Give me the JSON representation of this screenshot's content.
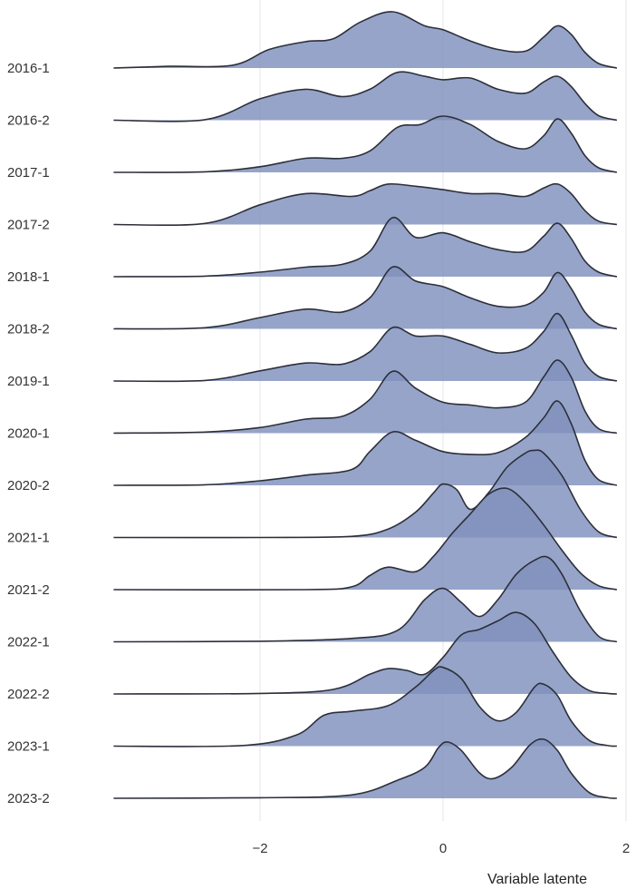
{
  "chart_data": {
    "type": "ridgeline",
    "title": "",
    "xlabel": "Variable latente",
    "ylabel": "",
    "xlim": [
      -3.6,
      1.95
    ],
    "xticks": [
      -2,
      0,
      2
    ],
    "grid": true,
    "fill_color": "#8090bd",
    "overlap_color": "#5a6aa6",
    "line_color": "#2c2f3a",
    "categories": [
      "2016-1",
      "2016-2",
      "2017-1",
      "2017-2",
      "2018-1",
      "2018-2",
      "2019-1",
      "2020-1",
      "2020-2",
      "2021-1",
      "2021-2",
      "2022-1",
      "2022-2",
      "2023-1",
      "2023-2"
    ],
    "series": [
      {
        "name": "2016-1",
        "x": [
          -3.6,
          -3.0,
          -2.3,
          -1.9,
          -1.5,
          -1.2,
          -0.9,
          -0.55,
          -0.2,
          0.0,
          0.3,
          0.6,
          0.9,
          1.1,
          1.25,
          1.4,
          1.55,
          1.7,
          1.9
        ],
        "y": [
          0.0,
          0.03,
          0.05,
          0.33,
          0.47,
          0.52,
          0.82,
          1.0,
          0.75,
          0.68,
          0.48,
          0.33,
          0.3,
          0.55,
          0.75,
          0.6,
          0.28,
          0.08,
          0.0
        ]
      },
      {
        "name": "2016-2",
        "x": [
          -3.6,
          -2.6,
          -2.0,
          -1.5,
          -1.1,
          -0.8,
          -0.5,
          -0.2,
          0.0,
          0.3,
          0.6,
          0.9,
          1.1,
          1.25,
          1.4,
          1.55,
          1.7,
          1.9
        ],
        "y": [
          0.0,
          0.01,
          0.38,
          0.55,
          0.42,
          0.55,
          0.85,
          0.78,
          0.72,
          0.75,
          0.55,
          0.48,
          0.68,
          0.78,
          0.6,
          0.3,
          0.08,
          0.0
        ]
      },
      {
        "name": "2017-1",
        "x": [
          -3.6,
          -2.6,
          -2.0,
          -1.5,
          -1.1,
          -0.8,
          -0.5,
          -0.25,
          0.0,
          0.3,
          0.6,
          0.9,
          1.1,
          1.25,
          1.4,
          1.55,
          1.7,
          1.9
        ],
        "y": [
          0.0,
          0.01,
          0.1,
          0.25,
          0.25,
          0.38,
          0.8,
          0.85,
          1.0,
          0.85,
          0.55,
          0.42,
          0.65,
          0.95,
          0.7,
          0.3,
          0.08,
          0.0
        ]
      },
      {
        "name": "2017-2",
        "x": [
          -3.6,
          -2.6,
          -2.0,
          -1.5,
          -1.0,
          -0.8,
          -0.6,
          -0.3,
          0.0,
          0.3,
          0.6,
          0.9,
          1.1,
          1.25,
          1.4,
          1.55,
          1.7,
          1.9
        ],
        "y": [
          0.0,
          0.02,
          0.35,
          0.55,
          0.5,
          0.6,
          0.72,
          0.68,
          0.62,
          0.55,
          0.55,
          0.5,
          0.65,
          0.72,
          0.55,
          0.25,
          0.06,
          0.0
        ]
      },
      {
        "name": "2018-1",
        "x": [
          -3.6,
          -2.6,
          -2.0,
          -1.5,
          -1.1,
          -0.8,
          -0.55,
          -0.3,
          0.0,
          0.3,
          0.6,
          0.9,
          1.1,
          1.25,
          1.4,
          1.55,
          1.7,
          1.9
        ],
        "y": [
          0.0,
          0.01,
          0.08,
          0.17,
          0.22,
          0.45,
          1.05,
          0.7,
          0.78,
          0.62,
          0.48,
          0.45,
          0.72,
          0.95,
          0.68,
          0.28,
          0.08,
          0.0
        ]
      },
      {
        "name": "2018-2",
        "x": [
          -3.6,
          -2.6,
          -2.0,
          -1.5,
          -1.1,
          -0.8,
          -0.55,
          -0.3,
          0.0,
          0.3,
          0.6,
          0.9,
          1.1,
          1.25,
          1.4,
          1.55,
          1.7,
          1.9
        ],
        "y": [
          0.0,
          0.02,
          0.2,
          0.35,
          0.3,
          0.55,
          1.1,
          0.85,
          0.75,
          0.55,
          0.4,
          0.42,
          0.65,
          1.0,
          0.72,
          0.3,
          0.08,
          0.0
        ]
      },
      {
        "name": "2019-1",
        "x": [
          -3.6,
          -2.6,
          -2.0,
          -1.5,
          -1.1,
          -0.8,
          -0.55,
          -0.3,
          0.0,
          0.3,
          0.6,
          0.9,
          1.1,
          1.25,
          1.4,
          1.55,
          1.7,
          1.9
        ],
        "y": [
          0.0,
          0.01,
          0.18,
          0.32,
          0.3,
          0.52,
          0.95,
          0.8,
          0.8,
          0.65,
          0.5,
          0.58,
          0.88,
          1.2,
          0.82,
          0.32,
          0.08,
          0.0
        ]
      },
      {
        "name": "2020-1",
        "x": [
          -3.6,
          -2.6,
          -2.0,
          -1.5,
          -1.1,
          -0.8,
          -0.55,
          -0.3,
          0.0,
          0.3,
          0.6,
          0.9,
          1.1,
          1.25,
          1.4,
          1.55,
          1.7,
          1.9
        ],
        "y": [
          0.0,
          0.02,
          0.1,
          0.25,
          0.3,
          0.6,
          1.1,
          0.8,
          0.55,
          0.5,
          0.45,
          0.55,
          1.0,
          1.3,
          1.0,
          0.4,
          0.08,
          0.0
        ]
      },
      {
        "name": "2020-2",
        "x": [
          -3.6,
          -2.6,
          -2.0,
          -1.5,
          -1.0,
          -0.8,
          -0.55,
          -0.3,
          0.0,
          0.3,
          0.6,
          0.9,
          1.1,
          1.25,
          1.4,
          1.55,
          1.7,
          1.9
        ],
        "y": [
          0.0,
          0.01,
          0.08,
          0.18,
          0.28,
          0.6,
          0.95,
          0.8,
          0.6,
          0.55,
          0.58,
          0.85,
          1.2,
          1.5,
          1.1,
          0.45,
          0.1,
          0.0
        ]
      },
      {
        "name": "2021-1",
        "x": [
          -3.6,
          -2.0,
          -1.0,
          -0.6,
          -0.3,
          -0.1,
          0.0,
          0.15,
          0.3,
          0.5,
          0.7,
          0.9,
          1.0,
          1.1,
          1.3,
          1.5,
          1.7,
          1.9
        ],
        "y": [
          0.0,
          0.0,
          0.02,
          0.15,
          0.45,
          0.8,
          0.95,
          0.85,
          0.5,
          0.8,
          1.25,
          1.5,
          1.55,
          1.5,
          1.1,
          0.5,
          0.1,
          0.0
        ]
      },
      {
        "name": "2021-2",
        "x": [
          -3.6,
          -1.5,
          -1.0,
          -0.8,
          -0.6,
          -0.3,
          -0.1,
          0.1,
          0.3,
          0.5,
          0.7,
          0.9,
          1.1,
          1.3,
          1.5,
          1.7,
          1.9
        ],
        "y": [
          0.0,
          0.0,
          0.05,
          0.25,
          0.4,
          0.32,
          0.6,
          1.0,
          1.35,
          1.7,
          1.8,
          1.55,
          1.15,
          0.7,
          0.3,
          0.07,
          0.0
        ]
      },
      {
        "name": "2022-1",
        "x": [
          -3.6,
          -2.0,
          -1.0,
          -0.5,
          -0.2,
          0.0,
          0.2,
          0.4,
          0.6,
          0.8,
          1.0,
          1.15,
          1.3,
          1.5,
          1.7,
          1.9
        ],
        "y": [
          0.0,
          0.01,
          0.06,
          0.2,
          0.75,
          0.95,
          0.7,
          0.45,
          0.75,
          1.2,
          1.45,
          1.5,
          1.2,
          0.55,
          0.1,
          0.0
        ]
      },
      {
        "name": "2022-2",
        "x": [
          -3.6,
          -2.0,
          -1.2,
          -0.8,
          -0.6,
          -0.4,
          -0.2,
          0.0,
          0.2,
          0.4,
          0.6,
          0.8,
          1.0,
          1.2,
          1.4,
          1.6,
          1.8,
          1.9
        ],
        "y": [
          0.0,
          0.01,
          0.08,
          0.35,
          0.45,
          0.42,
          0.35,
          0.65,
          1.05,
          1.15,
          1.3,
          1.45,
          1.25,
          0.75,
          0.3,
          0.06,
          0.01,
          0.0
        ]
      },
      {
        "name": "2023-1",
        "x": [
          -3.6,
          -2.2,
          -1.6,
          -1.3,
          -1.0,
          -0.6,
          -0.3,
          -0.1,
          0.0,
          0.2,
          0.4,
          0.6,
          0.8,
          1.0,
          1.1,
          1.25,
          1.4,
          1.6,
          1.8,
          1.9
        ],
        "y": [
          0.0,
          0.01,
          0.2,
          0.55,
          0.62,
          0.72,
          1.05,
          1.35,
          1.4,
          1.2,
          0.7,
          0.45,
          0.6,
          1.05,
          1.1,
          0.9,
          0.45,
          0.1,
          0.01,
          0.0
        ]
      },
      {
        "name": "2023-2",
        "x": [
          -3.6,
          -2.0,
          -1.0,
          -0.5,
          -0.2,
          -0.05,
          0.05,
          0.2,
          0.4,
          0.55,
          0.75,
          0.95,
          1.1,
          1.25,
          1.4,
          1.6,
          1.8,
          1.9
        ],
        "y": [
          0.0,
          0.01,
          0.06,
          0.32,
          0.55,
          0.9,
          1.0,
          0.85,
          0.45,
          0.35,
          0.55,
          0.95,
          1.05,
          0.85,
          0.45,
          0.1,
          0.01,
          0.0
        ]
      }
    ]
  }
}
